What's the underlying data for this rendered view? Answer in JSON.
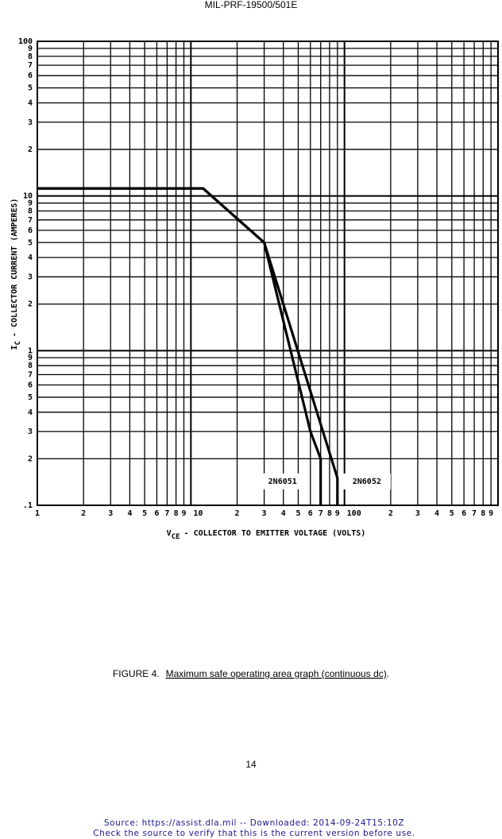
{
  "header": "MIL-PRF-19500/501E",
  "chart_data": {
    "type": "line",
    "xlabel_symbol": "V",
    "xlabel_subscript": "CE",
    "xlabel": "- COLLECTOR TO EMITTER VOLTAGE (VOLTS)",
    "ylabel_symbol": "I",
    "ylabel_subscript": "C",
    "ylabel": "- COLLECTOR CURRENT (AMPERES)",
    "xscale": "log",
    "yscale": "log",
    "grid": true,
    "xlim": [
      1,
      1000
    ],
    "ylim": [
      0.1,
      100
    ],
    "xticks": [
      1,
      2,
      3,
      4,
      5,
      6,
      7,
      8,
      9,
      10,
      {
        "value": 20,
        "label": "2"
      },
      {
        "value": 30,
        "label": "3"
      },
      {
        "value": 40,
        "label": "4"
      },
      {
        "value": 50,
        "label": "5"
      },
      {
        "value": 60,
        "label": "6"
      },
      {
        "value": 70,
        "label": "7"
      },
      {
        "value": 80,
        "label": "8"
      },
      {
        "value": 90,
        "label": "9"
      },
      100,
      {
        "value": 200,
        "label": "2"
      },
      {
        "value": 300,
        "label": "3"
      },
      {
        "value": 400,
        "label": "4"
      },
      {
        "value": 500,
        "label": "5"
      },
      {
        "value": 600,
        "label": "6"
      },
      {
        "value": 700,
        "label": "7"
      },
      {
        "value": 800,
        "label": "8"
      },
      {
        "value": 900,
        "label": "9"
      }
    ],
    "yticks": [
      {
        "value": 0.1,
        "label": ".1"
      },
      {
        "value": 0.2,
        "label": "2"
      },
      {
        "value": 0.3,
        "label": "3"
      },
      {
        "value": 0.4,
        "label": "4"
      },
      {
        "value": 0.5,
        "label": "5"
      },
      {
        "value": 0.6,
        "label": "6"
      },
      {
        "value": 0.7,
        "label": "7"
      },
      {
        "value": 0.8,
        "label": "8"
      },
      {
        "value": 0.9,
        "label": "9"
      },
      1,
      2,
      3,
      4,
      5,
      6,
      7,
      8,
      9,
      10,
      {
        "value": 20,
        "label": "2"
      },
      {
        "value": 30,
        "label": "3"
      },
      {
        "value": 40,
        "label": "4"
      },
      {
        "value": 50,
        "label": "5"
      },
      {
        "value": 60,
        "label": "6"
      },
      {
        "value": 70,
        "label": "7"
      },
      {
        "value": 80,
        "label": "8"
      },
      {
        "value": 90,
        "label": "9"
      },
      100
    ],
    "series": [
      {
        "name": "2N6051",
        "color": "#000000",
        "x": [
          1,
          12,
          30,
          60,
          70,
          70
        ],
        "values": [
          11.2,
          11.2,
          5,
          0.3,
          0.2,
          0.1
        ]
      },
      {
        "name": "2N6052",
        "color": "#000000",
        "x": [
          1,
          12,
          30,
          90,
          90
        ],
        "values": [
          11.2,
          11.2,
          5,
          0.15,
          0.1
        ]
      }
    ]
  },
  "caption": {
    "label": "FIGURE 4.",
    "text": "Maximum safe operating area graph (continuous dc)",
    "end": "."
  },
  "page_number": "14",
  "source": [
    "Source: https://assist.dla.mil -- Downloaded: 2014-09-24T15:10Z",
    "Check the source to verify that this is the current version before use."
  ]
}
